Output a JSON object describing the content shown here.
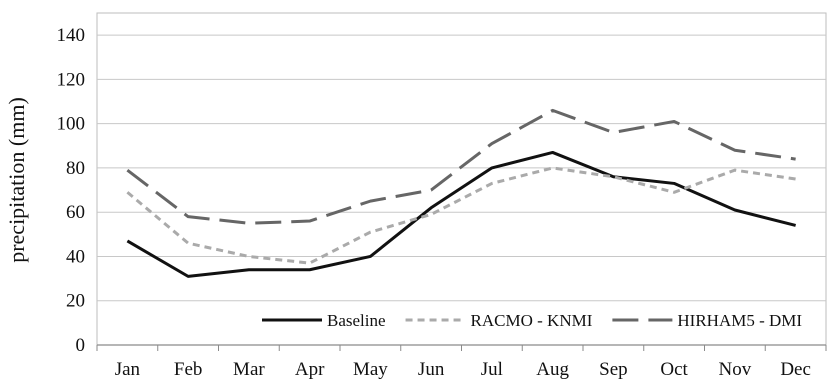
{
  "chart_data": {
    "type": "line",
    "title": "",
    "xlabel": "",
    "ylabel": "precipitation (mm)",
    "ylim": [
      0,
      150
    ],
    "yticks": [
      0,
      20,
      40,
      60,
      80,
      100,
      120,
      140
    ],
    "grid": true,
    "legend_position": "bottom-right",
    "categories": [
      "Jan",
      "Feb",
      "Mar",
      "Apr",
      "May",
      "Jun",
      "Jul",
      "Aug",
      "Sep",
      "Oct",
      "Nov",
      "Dec"
    ],
    "series": [
      {
        "name": "Baseline",
        "values": [
          47,
          31,
          34,
          34,
          40,
          62,
          80,
          87,
          76,
          73,
          61,
          54
        ],
        "color": "#111111",
        "dash": "solid"
      },
      {
        "name": "RACMO - KNMI",
        "values": [
          69,
          46,
          40,
          37,
          51,
          59,
          73,
          80,
          76,
          69,
          79,
          75
        ],
        "color": "#aaaaaa",
        "dash": "short-dash"
      },
      {
        "name": "HIRHAM5 - DMI",
        "values": [
          79,
          58,
          55,
          56,
          65,
          70,
          91,
          106,
          96,
          101,
          88,
          84
        ],
        "color": "#666666",
        "dash": "long-dash"
      }
    ]
  }
}
